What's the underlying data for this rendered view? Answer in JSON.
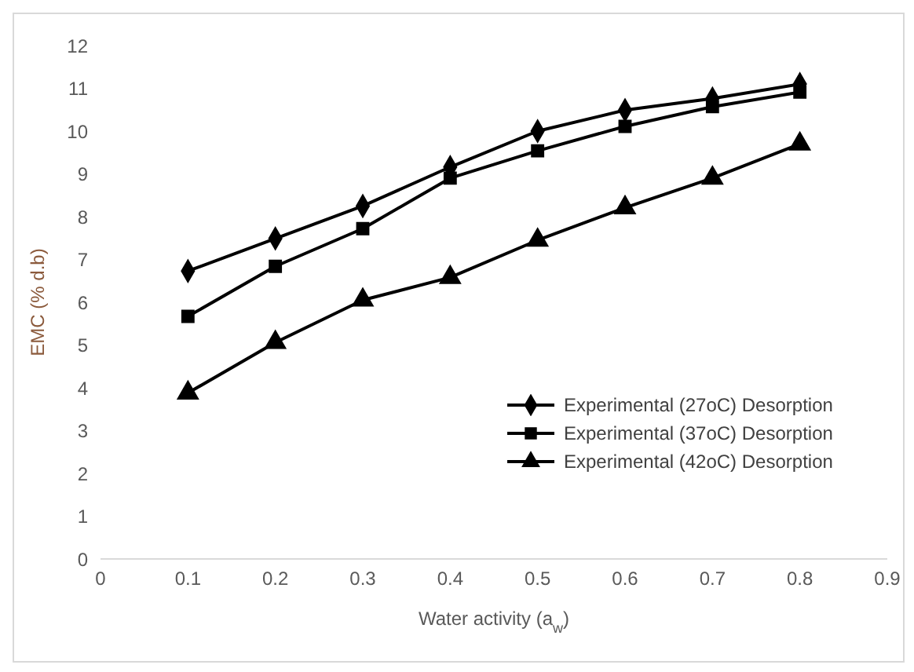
{
  "chart_data": {
    "type": "line",
    "xlabel": "Water activity (a$_{w}$)",
    "ylabel": "EMC (% d.b)",
    "x": [
      0.1,
      0.2,
      0.3,
      0.4,
      0.5,
      0.6,
      0.7,
      0.8
    ],
    "series": [
      {
        "name": "Experimental (27oC) Desorption",
        "color": "#000000",
        "marker": "diamond",
        "values": [
          6.73,
          7.49,
          8.25,
          9.16,
          10.0,
          10.49,
          10.76,
          11.1
        ]
      },
      {
        "name": "Experimental (37oC) Desorption",
        "color": "#000000",
        "marker": "square",
        "values": [
          5.67,
          6.84,
          7.72,
          8.9,
          9.54,
          10.11,
          10.57,
          10.91
        ]
      },
      {
        "name": "Experimental (42oC) Desorption",
        "color": "#000000",
        "marker": "triangle",
        "values": [
          3.88,
          5.06,
          6.05,
          6.58,
          7.45,
          8.21,
          8.9,
          9.7
        ]
      }
    ],
    "xlim": [
      0,
      0.9
    ],
    "xticks": [
      0,
      0.1,
      0.2,
      0.3,
      0.4,
      0.5,
      0.6,
      0.7,
      0.8,
      0.9
    ],
    "ylim": [
      0,
      12
    ],
    "yticks": [
      0,
      1,
      2,
      3,
      4,
      5,
      6,
      7,
      8,
      9,
      10,
      11,
      12
    ],
    "grid": false,
    "legend": "right",
    "line_style": "solid"
  }
}
